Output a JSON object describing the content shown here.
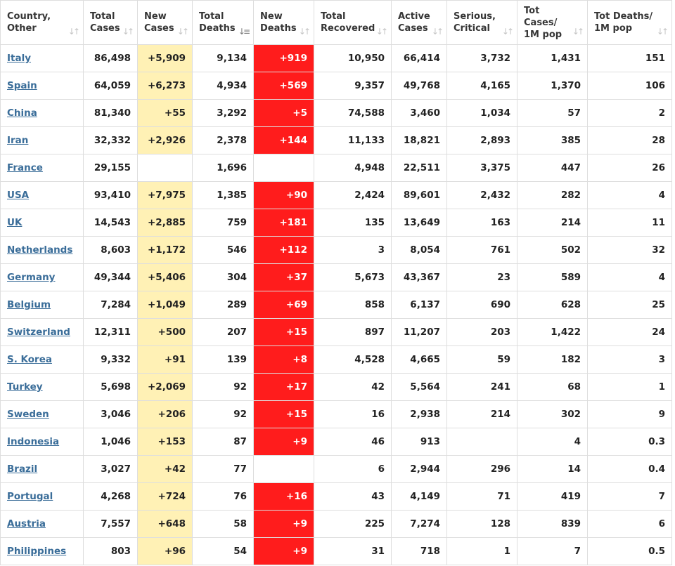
{
  "colors": {
    "new_cases_bg": "#fff1b5",
    "new_deaths_bg": "#ff1c1c",
    "link": "#3a6d99"
  },
  "table": {
    "headers": [
      {
        "line1": "Country,",
        "line2": "Other",
        "sort_icon": "sort-arrows-icon"
      },
      {
        "line1": "Total",
        "line2": "Cases",
        "sort_icon": "sort-arrows-icon"
      },
      {
        "line1": "New",
        "line2": "Cases",
        "sort_icon": "sort-arrows-icon"
      },
      {
        "line1": "Total",
        "line2": "Deaths",
        "sort_icon": "sort-descending-icon"
      },
      {
        "line1": "New",
        "line2": "Deaths",
        "sort_icon": "sort-arrows-icon"
      },
      {
        "line1": "Total",
        "line2": "Recovered",
        "sort_icon": "sort-arrows-icon"
      },
      {
        "line1": "Active",
        "line2": "Cases",
        "sort_icon": "sort-arrows-icon"
      },
      {
        "line1": "Serious,",
        "line2": "Critical",
        "sort_icon": "sort-arrows-icon"
      },
      {
        "line1": "Tot Cases/",
        "line2": "1M pop",
        "sort_icon": "sort-arrows-icon"
      },
      {
        "line1": "Tot Deaths/",
        "line2": "1M pop",
        "sort_icon": "sort-arrows-icon"
      }
    ],
    "rows": [
      {
        "country": "Italy",
        "total_cases": "86,498",
        "new_cases": "+5,909",
        "total_deaths": "9,134",
        "new_deaths": "+919",
        "total_recovered": "10,950",
        "active_cases": "66,414",
        "serious_critical": "3,732",
        "cases_per_1m": "1,431",
        "deaths_per_1m": "151"
      },
      {
        "country": "Spain",
        "total_cases": "64,059",
        "new_cases": "+6,273",
        "total_deaths": "4,934",
        "new_deaths": "+569",
        "total_recovered": "9,357",
        "active_cases": "49,768",
        "serious_critical": "4,165",
        "cases_per_1m": "1,370",
        "deaths_per_1m": "106"
      },
      {
        "country": "China",
        "total_cases": "81,340",
        "new_cases": "+55",
        "total_deaths": "3,292",
        "new_deaths": "+5",
        "total_recovered": "74,588",
        "active_cases": "3,460",
        "serious_critical": "1,034",
        "cases_per_1m": "57",
        "deaths_per_1m": "2"
      },
      {
        "country": "Iran",
        "total_cases": "32,332",
        "new_cases": "+2,926",
        "total_deaths": "2,378",
        "new_deaths": "+144",
        "total_recovered": "11,133",
        "active_cases": "18,821",
        "serious_critical": "2,893",
        "cases_per_1m": "385",
        "deaths_per_1m": "28"
      },
      {
        "country": "France",
        "total_cases": "29,155",
        "new_cases": "",
        "total_deaths": "1,696",
        "new_deaths": "",
        "total_recovered": "4,948",
        "active_cases": "22,511",
        "serious_critical": "3,375",
        "cases_per_1m": "447",
        "deaths_per_1m": "26"
      },
      {
        "country": "USA",
        "total_cases": "93,410",
        "new_cases": "+7,975",
        "total_deaths": "1,385",
        "new_deaths": "+90",
        "total_recovered": "2,424",
        "active_cases": "89,601",
        "serious_critical": "2,432",
        "cases_per_1m": "282",
        "deaths_per_1m": "4"
      },
      {
        "country": "UK",
        "total_cases": "14,543",
        "new_cases": "+2,885",
        "total_deaths": "759",
        "new_deaths": "+181",
        "total_recovered": "135",
        "active_cases": "13,649",
        "serious_critical": "163",
        "cases_per_1m": "214",
        "deaths_per_1m": "11"
      },
      {
        "country": "Netherlands",
        "total_cases": "8,603",
        "new_cases": "+1,172",
        "total_deaths": "546",
        "new_deaths": "+112",
        "total_recovered": "3",
        "active_cases": "8,054",
        "serious_critical": "761",
        "cases_per_1m": "502",
        "deaths_per_1m": "32"
      },
      {
        "country": "Germany",
        "total_cases": "49,344",
        "new_cases": "+5,406",
        "total_deaths": "304",
        "new_deaths": "+37",
        "total_recovered": "5,673",
        "active_cases": "43,367",
        "serious_critical": "23",
        "cases_per_1m": "589",
        "deaths_per_1m": "4"
      },
      {
        "country": "Belgium",
        "total_cases": "7,284",
        "new_cases": "+1,049",
        "total_deaths": "289",
        "new_deaths": "+69",
        "total_recovered": "858",
        "active_cases": "6,137",
        "serious_critical": "690",
        "cases_per_1m": "628",
        "deaths_per_1m": "25"
      },
      {
        "country": "Switzerland",
        "total_cases": "12,311",
        "new_cases": "+500",
        "total_deaths": "207",
        "new_deaths": "+15",
        "total_recovered": "897",
        "active_cases": "11,207",
        "serious_critical": "203",
        "cases_per_1m": "1,422",
        "deaths_per_1m": "24"
      },
      {
        "country": "S. Korea",
        "total_cases": "9,332",
        "new_cases": "+91",
        "total_deaths": "139",
        "new_deaths": "+8",
        "total_recovered": "4,528",
        "active_cases": "4,665",
        "serious_critical": "59",
        "cases_per_1m": "182",
        "deaths_per_1m": "3"
      },
      {
        "country": "Turkey",
        "total_cases": "5,698",
        "new_cases": "+2,069",
        "total_deaths": "92",
        "new_deaths": "+17",
        "total_recovered": "42",
        "active_cases": "5,564",
        "serious_critical": "241",
        "cases_per_1m": "68",
        "deaths_per_1m": "1"
      },
      {
        "country": "Sweden",
        "total_cases": "3,046",
        "new_cases": "+206",
        "total_deaths": "92",
        "new_deaths": "+15",
        "total_recovered": "16",
        "active_cases": "2,938",
        "serious_critical": "214",
        "cases_per_1m": "302",
        "deaths_per_1m": "9"
      },
      {
        "country": "Indonesia",
        "total_cases": "1,046",
        "new_cases": "+153",
        "total_deaths": "87",
        "new_deaths": "+9",
        "total_recovered": "46",
        "active_cases": "913",
        "serious_critical": "",
        "cases_per_1m": "4",
        "deaths_per_1m": "0.3"
      },
      {
        "country": "Brazil",
        "total_cases": "3,027",
        "new_cases": "+42",
        "total_deaths": "77",
        "new_deaths": "",
        "total_recovered": "6",
        "active_cases": "2,944",
        "serious_critical": "296",
        "cases_per_1m": "14",
        "deaths_per_1m": "0.4"
      },
      {
        "country": "Portugal",
        "total_cases": "4,268",
        "new_cases": "+724",
        "total_deaths": "76",
        "new_deaths": "+16",
        "total_recovered": "43",
        "active_cases": "4,149",
        "serious_critical": "71",
        "cases_per_1m": "419",
        "deaths_per_1m": "7"
      },
      {
        "country": "Austria",
        "total_cases": "7,557",
        "new_cases": "+648",
        "total_deaths": "58",
        "new_deaths": "+9",
        "total_recovered": "225",
        "active_cases": "7,274",
        "serious_critical": "128",
        "cases_per_1m": "839",
        "deaths_per_1m": "6"
      },
      {
        "country": "Philippines",
        "total_cases": "803",
        "new_cases": "+96",
        "total_deaths": "54",
        "new_deaths": "+9",
        "total_recovered": "31",
        "active_cases": "718",
        "serious_critical": "1",
        "cases_per_1m": "7",
        "deaths_per_1m": "0.5"
      }
    ]
  }
}
